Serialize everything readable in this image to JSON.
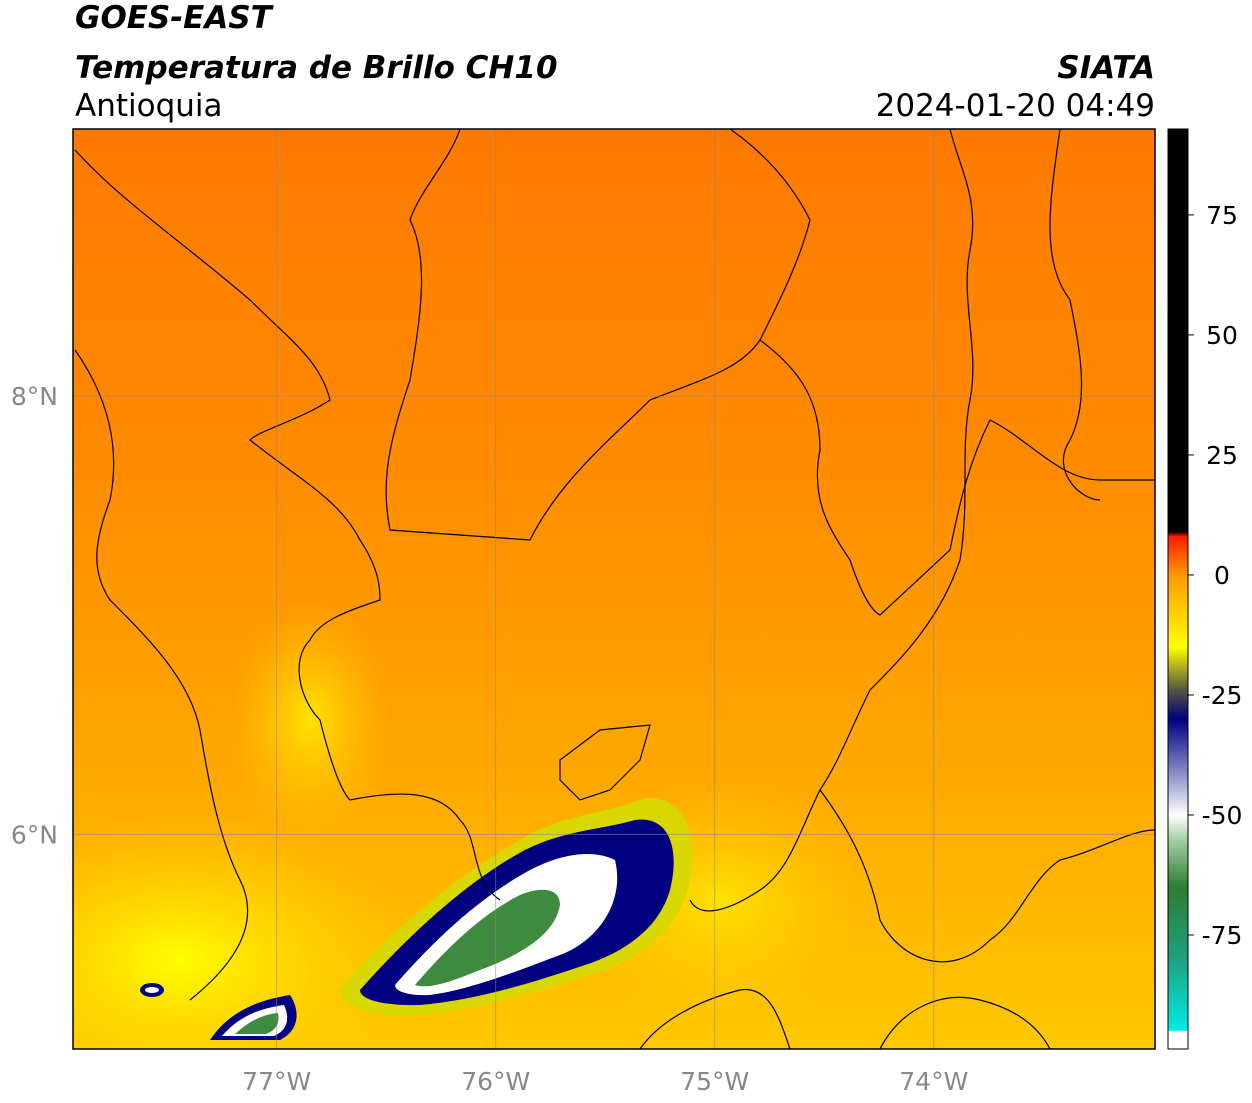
{
  "map": {
    "title": "GOES-EAST",
    "subtitle": "Temperatura de Brillo CH10",
    "source": "SIATA",
    "region": "Antioquia",
    "datetime": "2024-01-20 04:49",
    "lonlim": [
      -77.93,
      -72.99
    ],
    "latlim": [
      5.02,
      9.22
    ],
    "lon_ticks": [
      {
        "value": -77,
        "label": "77°W"
      },
      {
        "value": -76,
        "label": "76°W"
      },
      {
        "value": -75,
        "label": "75°W"
      },
      {
        "value": -74,
        "label": "74°W"
      }
    ],
    "lat_ticks": [
      {
        "value": 8,
        "label": "8°N"
      },
      {
        "value": 6,
        "label": "6°N"
      }
    ],
    "colorbar": {
      "lim": [
        -98.75,
        92.9
      ],
      "ticks": [
        75,
        50,
        25,
        0,
        -25,
        -50,
        -75
      ],
      "stops": [
        {
          "value": -98.75,
          "color": "#ffffff"
        },
        {
          "value": -95,
          "color": "#ffffff"
        },
        {
          "value": -94.9,
          "color": "#00ece4"
        },
        {
          "value": -80,
          "color": "#1fa080"
        },
        {
          "value": -65,
          "color": "#2e7d32"
        },
        {
          "value": -55,
          "color": "#a8d0a8"
        },
        {
          "value": -50,
          "color": "#ffffff"
        },
        {
          "value": -42,
          "color": "#9096cc"
        },
        {
          "value": -30,
          "color": "#000080"
        },
        {
          "value": -24,
          "color": "#555540"
        },
        {
          "value": -15,
          "color": "#ffff00"
        },
        {
          "value": 0,
          "color": "#ff9900"
        },
        {
          "value": 8,
          "color": "#ff1a00"
        },
        {
          "value": 9,
          "color": "#000000"
        },
        {
          "value": 92.9,
          "color": "#000000"
        }
      ]
    }
  }
}
